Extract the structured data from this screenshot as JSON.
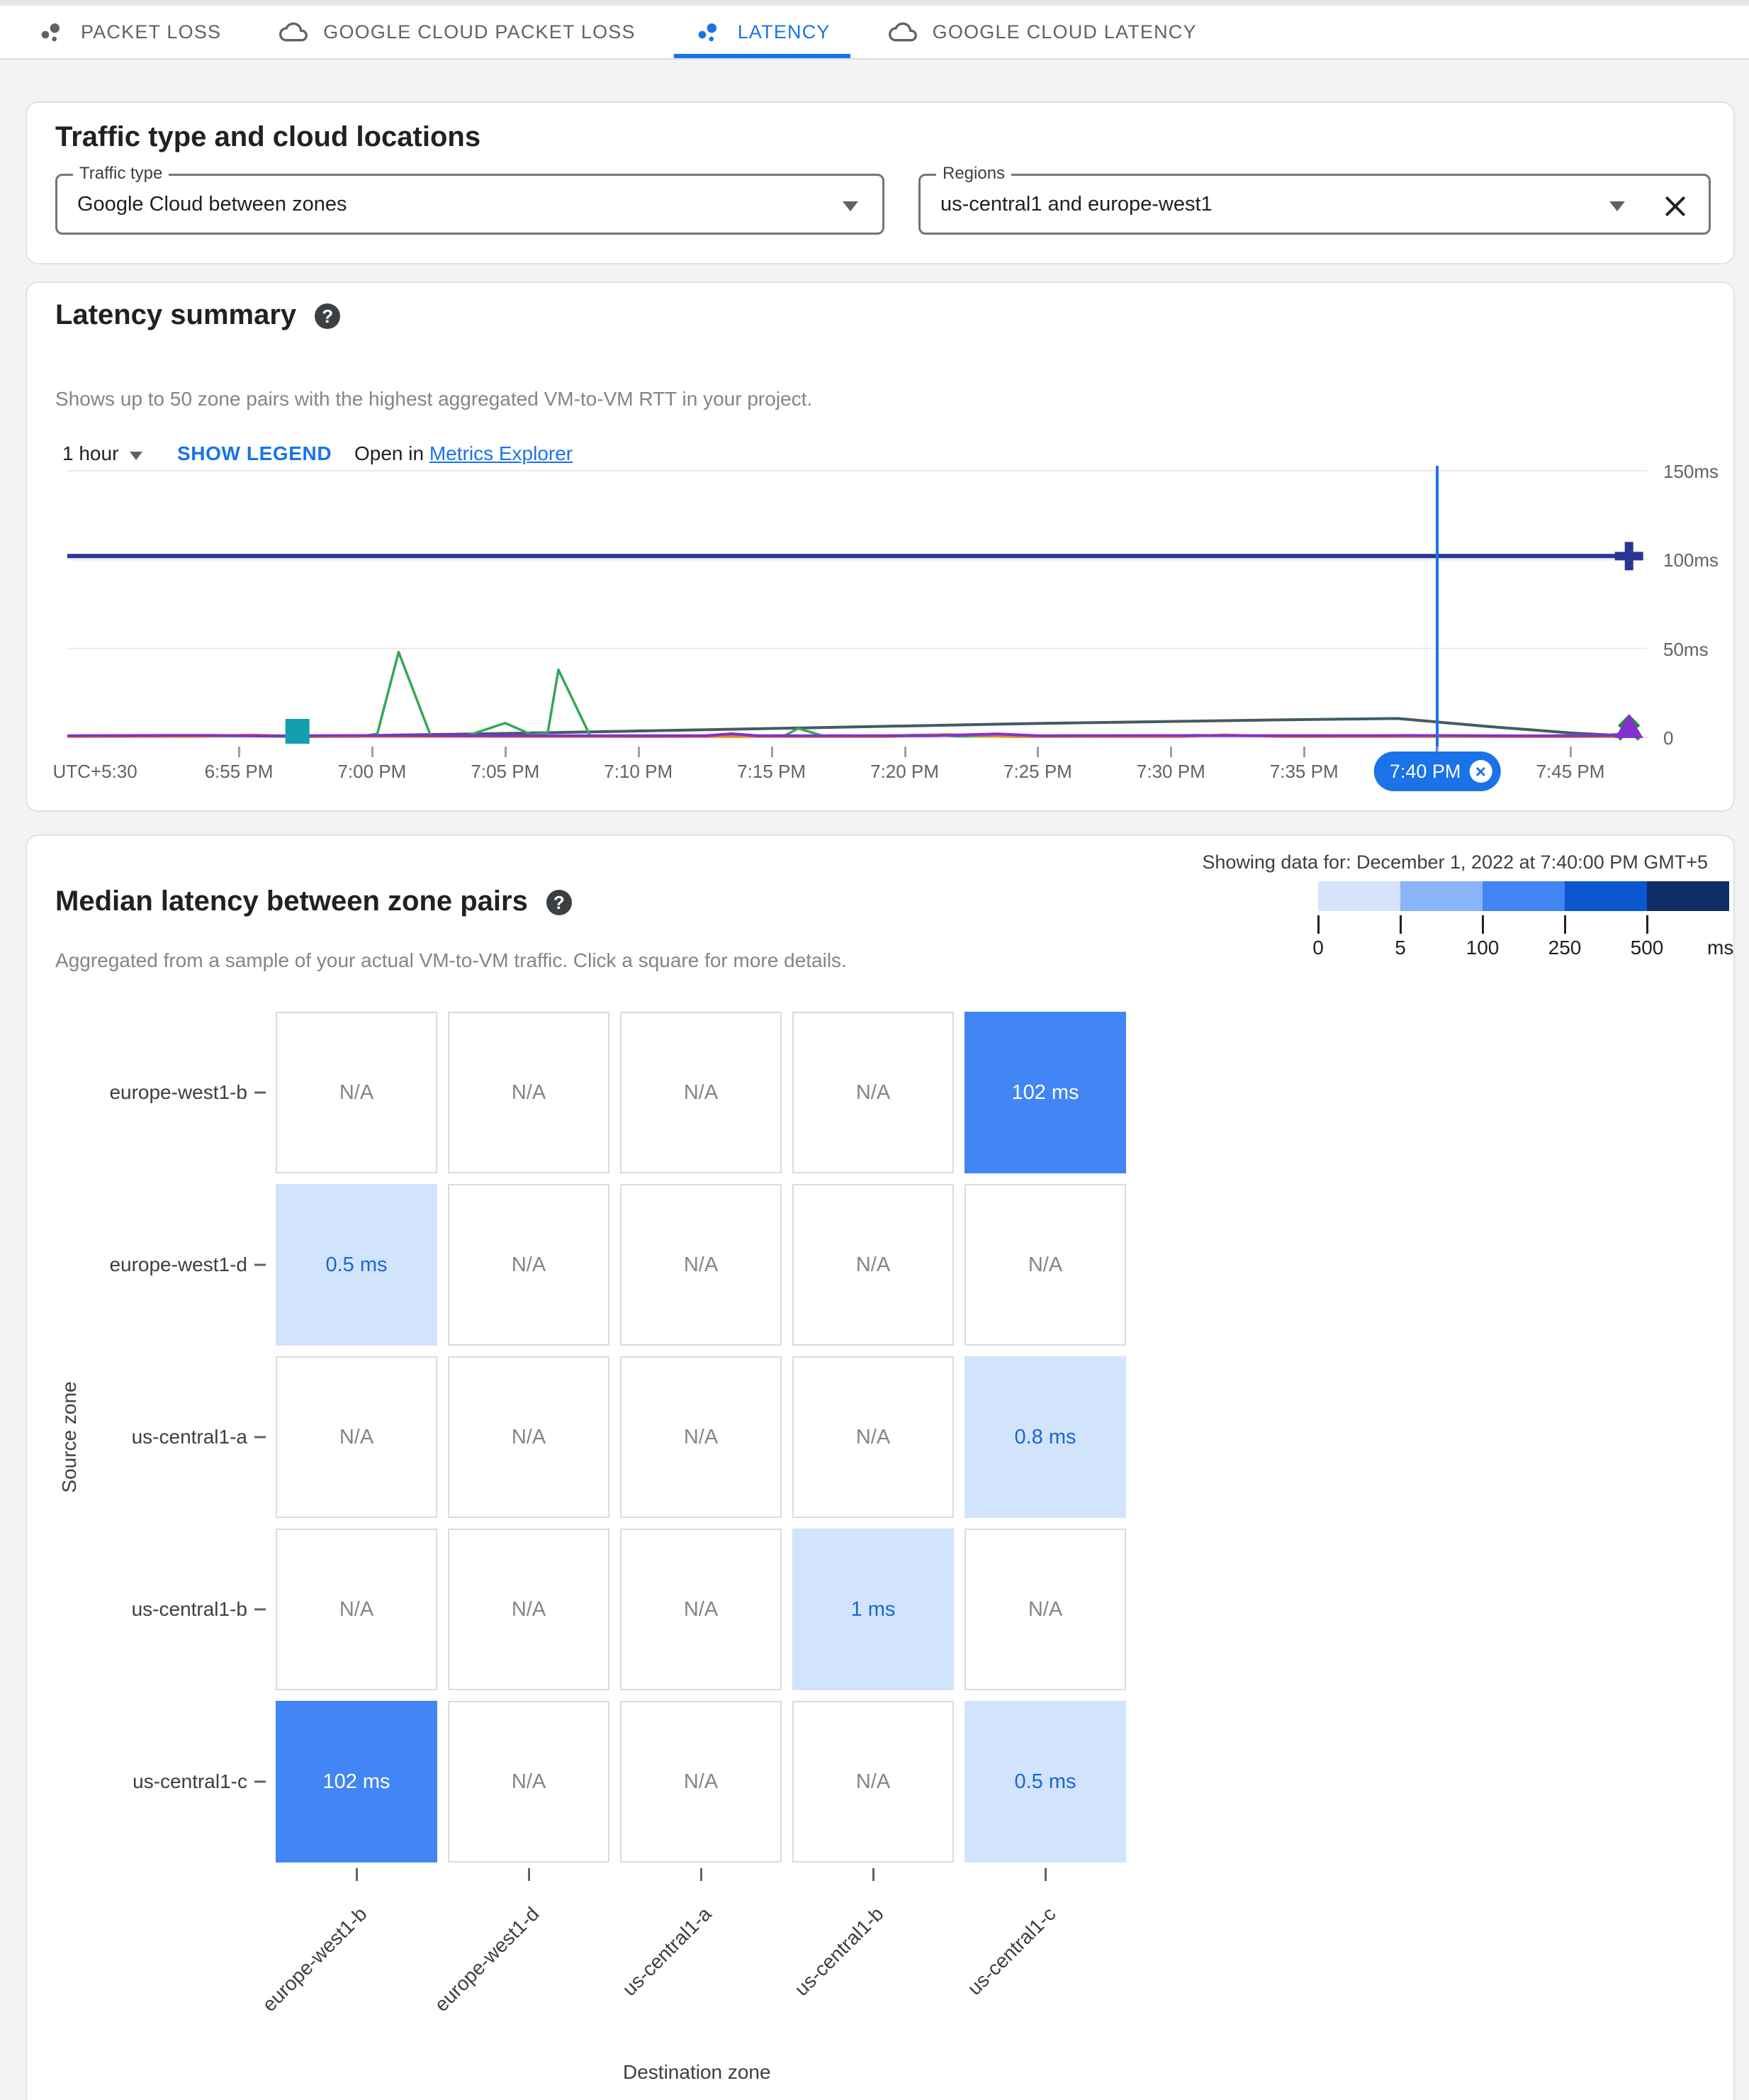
{
  "icons": {
    "help": "?",
    "chip_close": "×"
  },
  "tabs": [
    {
      "label": "PACKET LOSS",
      "icon": "scatter-dots",
      "selected": false
    },
    {
      "label": "GOOGLE CLOUD PACKET LOSS",
      "icon": "cloud",
      "selected": false
    },
    {
      "label": "LATENCY",
      "icon": "scatter-dots",
      "selected": true
    },
    {
      "label": "GOOGLE CLOUD LATENCY",
      "icon": "cloud",
      "selected": false
    }
  ],
  "filters_card": {
    "title": "Traffic type and cloud locations",
    "traffic_type": {
      "label": "Traffic type",
      "value": "Google Cloud between zones"
    },
    "regions": {
      "label": "Regions",
      "value": "us-central1 and europe-west1"
    }
  },
  "latency_summary": {
    "title": "Latency summary",
    "description": "Shows up to 50 zone pairs with the highest aggregated VM-to-VM RTT in your project.",
    "time_range": "1 hour",
    "show_legend_label": "SHOW LEGEND",
    "open_in_label": "Open in",
    "metrics_explorer_label": "Metrics Explorer",
    "chart_data": {
      "type": "line",
      "x_unit": "minutes after 6:50 PM",
      "x_domain": [
        -1.44,
        57.9
      ],
      "ylim": [
        0,
        160
      ],
      "y_ticks": [
        {
          "v": 0,
          "label": "0"
        },
        {
          "v": 50,
          "label": "50ms"
        },
        {
          "v": 100,
          "label": "100ms"
        },
        {
          "v": 150,
          "label": "150ms"
        }
      ],
      "x_ticks": [
        {
          "m": -0.4,
          "label": "UTC+5:30",
          "tick": false
        },
        {
          "m": 5,
          "label": "6:55 PM",
          "tick": true
        },
        {
          "m": 10,
          "label": "7:00 PM",
          "tick": true
        },
        {
          "m": 15,
          "label": "7:05 PM",
          "tick": true
        },
        {
          "m": 20,
          "label": "7:10 PM",
          "tick": true
        },
        {
          "m": 25,
          "label": "7:15 PM",
          "tick": true
        },
        {
          "m": 30,
          "label": "7:20 PM",
          "tick": true
        },
        {
          "m": 35,
          "label": "7:25 PM",
          "tick": true
        },
        {
          "m": 40,
          "label": "7:30 PM",
          "tick": true
        },
        {
          "m": 45,
          "label": "7:35 PM",
          "tick": true
        },
        {
          "m": 50,
          "label": "7:40 PM",
          "tick": true,
          "selected": true
        },
        {
          "m": 55,
          "label": "7:45 PM",
          "tick": true
        }
      ],
      "selected": {
        "m": 50,
        "label": "7:40 PM",
        "color": "#1a73e8"
      },
      "series": [
        {
          "name": "rtt-102ms-line",
          "color": "#283593",
          "width": 6,
          "points": [
            [
              -1.44,
              102
            ],
            [
              57.2,
              102
            ]
          ]
        },
        {
          "name": "rtt-slate-line",
          "color": "#455a64",
          "width": 4,
          "points": [
            [
              7.2,
              0.4
            ],
            [
              15,
              2.2
            ],
            [
              25,
              5
            ],
            [
              35,
              7.8
            ],
            [
              44,
              9.8
            ],
            [
              48.5,
              10.6
            ],
            [
              52,
              6
            ],
            [
              55,
              2.5
            ],
            [
              56.5,
              1.3
            ],
            [
              57.2,
              2.3
            ]
          ]
        },
        {
          "name": "rtt-green-line",
          "color": "#34a853",
          "width": 3.5,
          "points": [
            [
              -1.44,
              0.5
            ],
            [
              3,
              0.5
            ],
            [
              5,
              0.8
            ],
            [
              7,
              0.4
            ],
            [
              9.5,
              0.4
            ],
            [
              10.2,
              2
            ],
            [
              11,
              48
            ],
            [
              12.2,
              1
            ],
            [
              13.5,
              0.6
            ],
            [
              15,
              8
            ],
            [
              16,
              1.5
            ],
            [
              16.6,
              2.5
            ],
            [
              17,
              38
            ],
            [
              18.2,
              0.5
            ],
            [
              20,
              0.4
            ],
            [
              23,
              0.5
            ],
            [
              25.5,
              1
            ],
            [
              26,
              5
            ],
            [
              27,
              0.6
            ],
            [
              29,
              0.8
            ],
            [
              31,
              1.5
            ],
            [
              32,
              0.6
            ],
            [
              35,
              0.8
            ],
            [
              38,
              0.6
            ],
            [
              41,
              1.2
            ],
            [
              43,
              0.8
            ],
            [
              45,
              1
            ],
            [
              47,
              0.8
            ],
            [
              49,
              1.2
            ],
            [
              51,
              0.8
            ],
            [
              53,
              0.6
            ],
            [
              55,
              1.2
            ],
            [
              56.5,
              1
            ],
            [
              57.2,
              2.5
            ]
          ]
        },
        {
          "name": "rtt-orange-line",
          "color": "#f0860c",
          "width": 3.5,
          "points": [
            [
              -1.44,
              0.4
            ],
            [
              3.5,
              0.5
            ],
            [
              5.5,
              1.4
            ],
            [
              7.5,
              0.5
            ],
            [
              29.5,
              0.4
            ],
            [
              31.5,
              1.7
            ],
            [
              34,
              0.4
            ],
            [
              40.5,
              0.4
            ],
            [
              42,
              1.5
            ],
            [
              44,
              0.4
            ],
            [
              57.2,
              0.4
            ]
          ]
        },
        {
          "name": "rtt-purple-line",
          "color": "#8430ce",
          "width": 4,
          "points": [
            [
              -1.44,
              0.9
            ],
            [
              4,
              1.1
            ],
            [
              6,
              0.8
            ],
            [
              9,
              1
            ],
            [
              13.5,
              0.9
            ],
            [
              22.5,
              0.9
            ],
            [
              23.5,
              2
            ],
            [
              24.5,
              0.9
            ],
            [
              31,
              0.9
            ],
            [
              33.5,
              1.9
            ],
            [
              35,
              0.9
            ],
            [
              40,
              1
            ],
            [
              45,
              0.9
            ],
            [
              50,
              1
            ],
            [
              54,
              0.8
            ],
            [
              57.2,
              1
            ]
          ]
        }
      ],
      "markers": [
        {
          "type": "square",
          "m": 7.2,
          "v": 0.8,
          "color": "#12a0b0",
          "name": "teal-square-marker"
        },
        {
          "type": "plus",
          "m": 57.2,
          "v": 102,
          "color": "#283593",
          "name": "navy-plus-end-marker"
        },
        {
          "type": "chevrons",
          "m": 57.2,
          "v": 6,
          "color": "#1e8e3e",
          "name": "green-chevrons-marker"
        },
        {
          "type": "triangle",
          "m": 57.2,
          "v": 1.2,
          "color": "#8430ce",
          "name": "purple-triangle-end-marker"
        }
      ]
    }
  },
  "median_latency": {
    "title": "Median latency between zone pairs",
    "showing_data_for": "Showing data for: December 1, 2022 at 7:40:00 PM GMT+5",
    "description": "Aggregated from a sample of your actual VM-to-VM traffic. Click a square for more details.",
    "legend": {
      "colors": [
        "#d6e4fb",
        "#8ab4f8",
        "#4285f4",
        "#0b57d0",
        "#0d2d64"
      ],
      "ticks": [
        "0",
        "5",
        "100",
        "250",
        "500"
      ],
      "unit": "ms"
    },
    "heatmap": {
      "source_axis_label": "Source zone",
      "destination_axis_label": "Destination zone",
      "rows": [
        "europe-west1-b",
        "europe-west1-d",
        "us-central1-a",
        "us-central1-b",
        "us-central1-c"
      ],
      "columns": [
        "europe-west1-b",
        "europe-west1-d",
        "us-central1-a",
        "us-central1-b",
        "us-central1-c"
      ],
      "cells": [
        [
          "N/A",
          "N/A",
          "N/A",
          "N/A",
          "102 ms"
        ],
        [
          "0.5 ms",
          "N/A",
          "N/A",
          "N/A",
          "N/A"
        ],
        [
          "N/A",
          "N/A",
          "N/A",
          "N/A",
          "0.8 ms"
        ],
        [
          "N/A",
          "N/A",
          "N/A",
          "1 ms",
          "N/A"
        ],
        [
          "102 ms",
          "N/A",
          "N/A",
          "N/A",
          "0.5 ms"
        ]
      ],
      "cell_levels": [
        [
          0,
          0,
          0,
          0,
          2
        ],
        [
          1,
          0,
          0,
          0,
          0
        ],
        [
          0,
          0,
          0,
          0,
          1
        ],
        [
          0,
          0,
          0,
          1,
          0
        ],
        [
          2,
          0,
          0,
          0,
          1
        ]
      ]
    }
  }
}
